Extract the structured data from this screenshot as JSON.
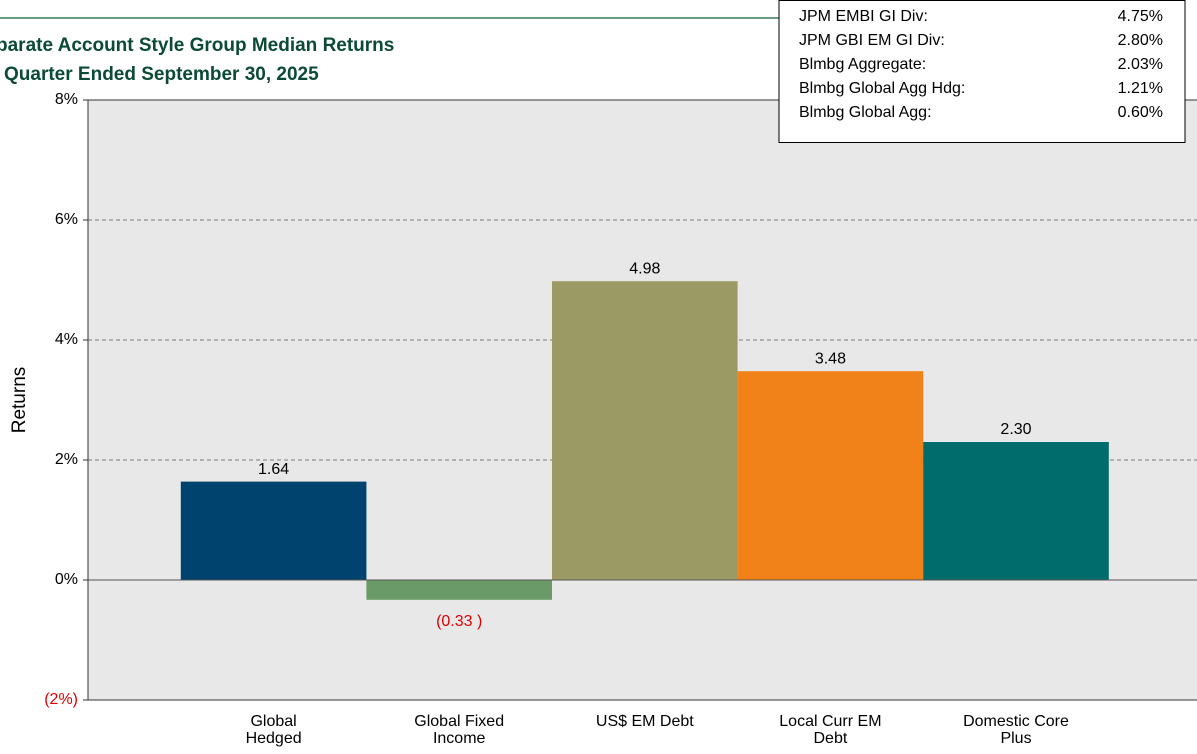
{
  "chart_data": {
    "type": "bar",
    "title": [
      "parate Account Style Group Median Returns",
      "Quarter Ended September 30, 2025"
    ],
    "y_label": "Returns",
    "categories": [
      [
        "Global",
        "Hedged"
      ],
      [
        "Global Fixed",
        "Income"
      ],
      [
        "US$ EM Debt"
      ],
      [
        "Local Curr EM",
        "Debt"
      ],
      [
        "Domestic Core",
        "Plus"
      ]
    ],
    "values": [
      1.64,
      -0.33,
      4.98,
      3.48,
      2.3
    ],
    "value_labels": [
      "1.64",
      "(0.33 )",
      "4.98",
      "3.48",
      "2.30"
    ],
    "colors": [
      "#00436e",
      "#6a9a68",
      "#9c9a64",
      "#f08219",
      "#006c6b"
    ],
    "negative_color": "#e00000",
    "plot_background": "#e8e8e8",
    "ylim": [
      -2,
      8
    ],
    "yticks": [
      {
        "value": -2,
        "label": "(2%)"
      },
      {
        "value": 0,
        "label": "0%"
      },
      {
        "value": 2,
        "label": "2%"
      },
      {
        "value": 4,
        "label": "4%"
      },
      {
        "value": 6,
        "label": "6%"
      },
      {
        "value": 8,
        "label": "8%"
      }
    ],
    "grid": true,
    "benchmark_table": {
      "rows": [
        [
          "JPM EMBI GI Div:",
          "4.75%"
        ],
        [
          "JPM GBI EM GI Div:",
          "2.80%"
        ],
        [
          "Blmbg Aggregate:",
          "2.03%"
        ],
        [
          "Blmbg Global Agg Hdg:",
          "1.21%"
        ],
        [
          "Blmbg Global Agg:",
          "0.60%"
        ]
      ]
    }
  }
}
